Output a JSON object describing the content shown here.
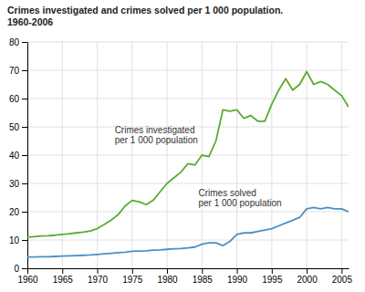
{
  "chart_data": {
    "type": "line",
    "title": "Crimes investigated and crimes solved per 1 000 population.\n1960-2006",
    "x": [
      1960,
      1961,
      1962,
      1963,
      1964,
      1965,
      1966,
      1967,
      1968,
      1969,
      1970,
      1971,
      1972,
      1973,
      1974,
      1975,
      1976,
      1977,
      1978,
      1979,
      1980,
      1981,
      1982,
      1983,
      1984,
      1985,
      1986,
      1987,
      1988,
      1989,
      1990,
      1991,
      1992,
      1993,
      1994,
      1995,
      1996,
      1997,
      1998,
      1999,
      2000,
      2001,
      2002,
      2003,
      2004,
      2005,
      2006
    ],
    "series": [
      {
        "color": "#5aab2e",
        "values": [
          11.0,
          11.2,
          11.4,
          11.5,
          11.7,
          12.0,
          12.2,
          12.5,
          12.8,
          13.2,
          14.0,
          15.5,
          17.0,
          19.0,
          22.0,
          24.0,
          23.5,
          22.5,
          24.0,
          27.0,
          30.0,
          32.0,
          34.0,
          37.0,
          36.5,
          40.0,
          39.5,
          45.0,
          56.0,
          55.5,
          56.0,
          53.0,
          54.0,
          52.0,
          52.0,
          58.0,
          63.0,
          67.0,
          63.0,
          65.0,
          69.5,
          65.0,
          66.0,
          65.0,
          63.0,
          61.0,
          57.0
        ]
      },
      {
        "color": "#4a90c4",
        "values": [
          4.0,
          4.0,
          4.1,
          4.1,
          4.2,
          4.3,
          4.4,
          4.5,
          4.6,
          4.7,
          4.9,
          5.1,
          5.3,
          5.5,
          5.7,
          6.0,
          6.1,
          6.2,
          6.4,
          6.5,
          6.7,
          6.9,
          7.0,
          7.2,
          7.5,
          8.5,
          9.0,
          9.0,
          8.0,
          9.5,
          12.0,
          12.5,
          12.5,
          13.0,
          13.5,
          14.0,
          15.0,
          16.0,
          17.0,
          18.0,
          21.0,
          21.5,
          21.0,
          21.5,
          21.0,
          21.0,
          20.0
        ]
      }
    ],
    "annotations": [
      {
        "text": "Crimes investigated\nper 1 000 population",
        "x": 1972.5,
        "y": 47
      },
      {
        "text": "Crimes solved\nper 1 000 population",
        "x": 1984.5,
        "y": 25
      }
    ],
    "xlim": [
      1960,
      2006
    ],
    "xticks": [
      1960,
      1965,
      1970,
      1975,
      1980,
      1985,
      1990,
      1995,
      2000,
      2005
    ],
    "ylim": [
      0,
      80
    ],
    "yticks": [
      0,
      10,
      20,
      30,
      40,
      50,
      60,
      70,
      80
    ],
    "grid": true
  }
}
